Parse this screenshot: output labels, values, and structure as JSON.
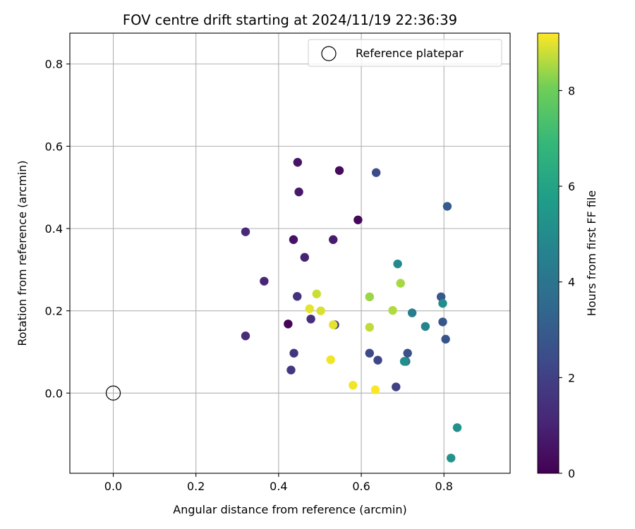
{
  "chart_data": {
    "type": "scatter",
    "title": "FOV centre drift starting at 2024/11/19 22:36:39",
    "xlabel": "Angular distance from reference (arcmin)",
    "ylabel": "Rotation from reference (arcmin)",
    "xlim": [
      -0.105,
      0.96
    ],
    "ylim": [
      -0.195,
      0.875
    ],
    "xticks": [
      0.0,
      0.2,
      0.4,
      0.6,
      0.8
    ],
    "yticks": [
      0.0,
      0.2,
      0.4,
      0.6,
      0.8
    ],
    "tick_labels_x": [
      "0.0",
      "0.2",
      "0.4",
      "0.6",
      "0.8"
    ],
    "tick_labels_y": [
      "0.0",
      "0.2",
      "0.4",
      "0.6",
      "0.8"
    ],
    "grid": true,
    "legend": {
      "label": "Reference platepar",
      "placement": "top-right",
      "marker": "hollow-circle"
    },
    "reference_point": {
      "x": 0.0,
      "y": 0.0
    },
    "colorbar": {
      "label": "Hours from first FF file",
      "colormap": "viridis",
      "range": [
        0,
        9.2
      ],
      "ticks": [
        0,
        2,
        4,
        6,
        8
      ],
      "tick_labels": [
        "0",
        "2",
        "4",
        "6",
        "8"
      ]
    },
    "points": [
      {
        "x": 0.423,
        "y": 0.168,
        "h": 0.1
      },
      {
        "x": 0.592,
        "y": 0.421,
        "h": 0.2
      },
      {
        "x": 0.547,
        "y": 0.541,
        "h": 0.3
      },
      {
        "x": 0.436,
        "y": 0.373,
        "h": 0.5
      },
      {
        "x": 0.446,
        "y": 0.561,
        "h": 0.6
      },
      {
        "x": 0.449,
        "y": 0.489,
        "h": 0.7
      },
      {
        "x": 0.532,
        "y": 0.373,
        "h": 0.8
      },
      {
        "x": 0.463,
        "y": 0.33,
        "h": 1.0
      },
      {
        "x": 0.365,
        "y": 0.272,
        "h": 1.1
      },
      {
        "x": 0.32,
        "y": 0.392,
        "h": 1.2
      },
      {
        "x": 0.32,
        "y": 0.139,
        "h": 1.3
      },
      {
        "x": 0.478,
        "y": 0.18,
        "h": 1.4
      },
      {
        "x": 0.445,
        "y": 0.235,
        "h": 1.5
      },
      {
        "x": 0.437,
        "y": 0.097,
        "h": 1.6
      },
      {
        "x": 0.43,
        "y": 0.056,
        "h": 1.7
      },
      {
        "x": 0.536,
        "y": 0.166,
        "h": 1.8
      },
      {
        "x": 0.684,
        "y": 0.015,
        "h": 2.0
      },
      {
        "x": 0.64,
        "y": 0.08,
        "h": 2.2
      },
      {
        "x": 0.62,
        "y": 0.097,
        "h": 2.3
      },
      {
        "x": 0.636,
        "y": 0.536,
        "h": 2.4
      },
      {
        "x": 0.712,
        "y": 0.097,
        "h": 2.6
      },
      {
        "x": 0.804,
        "y": 0.131,
        "h": 2.7
      },
      {
        "x": 0.797,
        "y": 0.173,
        "h": 2.8
      },
      {
        "x": 0.793,
        "y": 0.234,
        "h": 2.9
      },
      {
        "x": 0.808,
        "y": 0.454,
        "h": 3.0
      },
      {
        "x": 0.708,
        "y": 0.077,
        "h": 4.0
      },
      {
        "x": 0.723,
        "y": 0.195,
        "h": 4.4
      },
      {
        "x": 0.755,
        "y": 0.162,
        "h": 4.7
      },
      {
        "x": 0.688,
        "y": 0.314,
        "h": 4.9
      },
      {
        "x": 0.797,
        "y": 0.218,
        "h": 5.0
      },
      {
        "x": 0.704,
        "y": 0.077,
        "h": 5.1
      },
      {
        "x": 0.832,
        "y": -0.084,
        "h": 5.2
      },
      {
        "x": 0.817,
        "y": -0.158,
        "h": 5.3
      },
      {
        "x": 0.62,
        "y": 0.234,
        "h": 8.4
      },
      {
        "x": 0.695,
        "y": 0.267,
        "h": 8.5
      },
      {
        "x": 0.676,
        "y": 0.201,
        "h": 8.6
      },
      {
        "x": 0.62,
        "y": 0.16,
        "h": 8.7
      },
      {
        "x": 0.492,
        "y": 0.241,
        "h": 8.8
      },
      {
        "x": 0.502,
        "y": 0.2,
        "h": 8.9
      },
      {
        "x": 0.475,
        "y": 0.205,
        "h": 9.0
      },
      {
        "x": 0.532,
        "y": 0.166,
        "h": 9.0
      },
      {
        "x": 0.526,
        "y": 0.081,
        "h": 9.1
      },
      {
        "x": 0.58,
        "y": 0.019,
        "h": 9.1
      },
      {
        "x": 0.634,
        "y": 0.008,
        "h": 9.2
      }
    ]
  }
}
